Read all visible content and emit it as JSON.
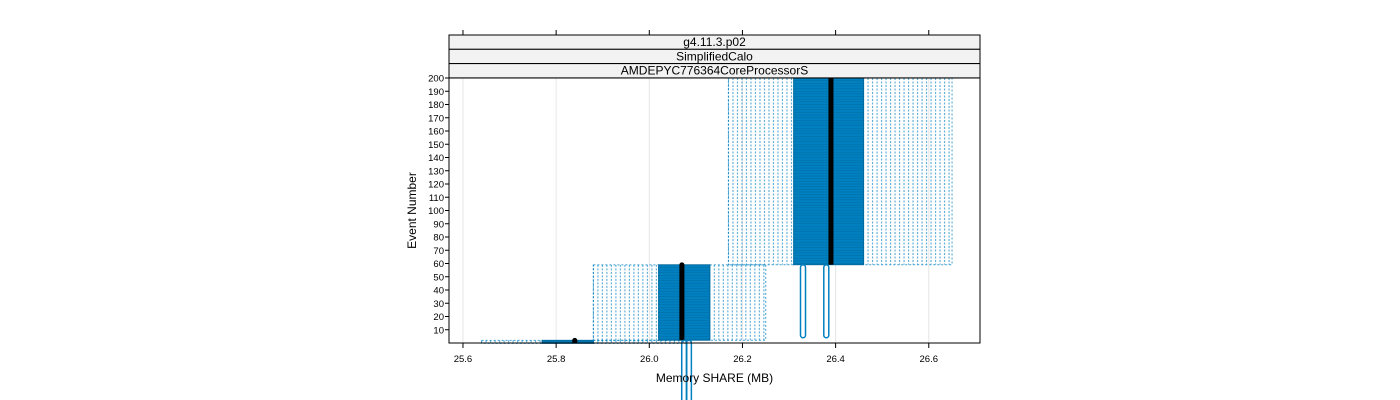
{
  "chart_data": {
    "type": "box-and-whisker (lattice bwplot, horizontal)",
    "strips": [
      "g4.11.3.p02",
      "SimplifiedCalo",
      "AMDEPYC776364CoreProcessorS"
    ],
    "xlabel": "Memory SHARE (MB)",
    "ylabel": "Event Number",
    "xlim": [
      25.57,
      26.71
    ],
    "ylim": [
      0,
      200
    ],
    "x_ticks": [
      25.6,
      25.8,
      26.0,
      26.2,
      26.4,
      26.6
    ],
    "x_tick_labels": [
      "25.6",
      "25.8",
      "26.0",
      "26.2",
      "26.4",
      "26.6"
    ],
    "y_ticks": [
      10,
      20,
      30,
      40,
      50,
      60,
      70,
      80,
      90,
      100,
      110,
      120,
      130,
      140,
      150,
      160,
      170,
      180,
      190,
      200
    ],
    "y_tick_labels": [
      "10",
      "20",
      "30",
      "40",
      "50",
      "60",
      "70",
      "80",
      "90",
      "100",
      "110",
      "120",
      "130",
      "140",
      "150",
      "160",
      "170",
      "180",
      "190",
      "200"
    ],
    "grid": "vertical lines at x ticks",
    "colors": {
      "box": "#0080c0",
      "whisker": "#0080c0",
      "median": "#000000",
      "strip_bg": "#f2f2f2",
      "grid": "#e6e6e6"
    },
    "groups": [
      {
        "events": [
          1,
          2
        ],
        "q1": 25.77,
        "median": 25.84,
        "q3": 25.88,
        "whisker_lo": 25.64,
        "whisker_hi": 26.08
      },
      {
        "events": [
          3,
          59
        ],
        "q1": 26.02,
        "median": 26.07,
        "q3": 26.13,
        "whisker_lo": 25.88,
        "whisker_hi": 26.25,
        "outliers": [
          26.075,
          26.085
        ]
      },
      {
        "events": [
          60,
          200
        ],
        "q1": 26.31,
        "median": 26.39,
        "q3": 26.46,
        "whisker_lo": 26.17,
        "whisker_hi": 26.65,
        "outliers": [
          26.33,
          26.38
        ]
      }
    ]
  }
}
